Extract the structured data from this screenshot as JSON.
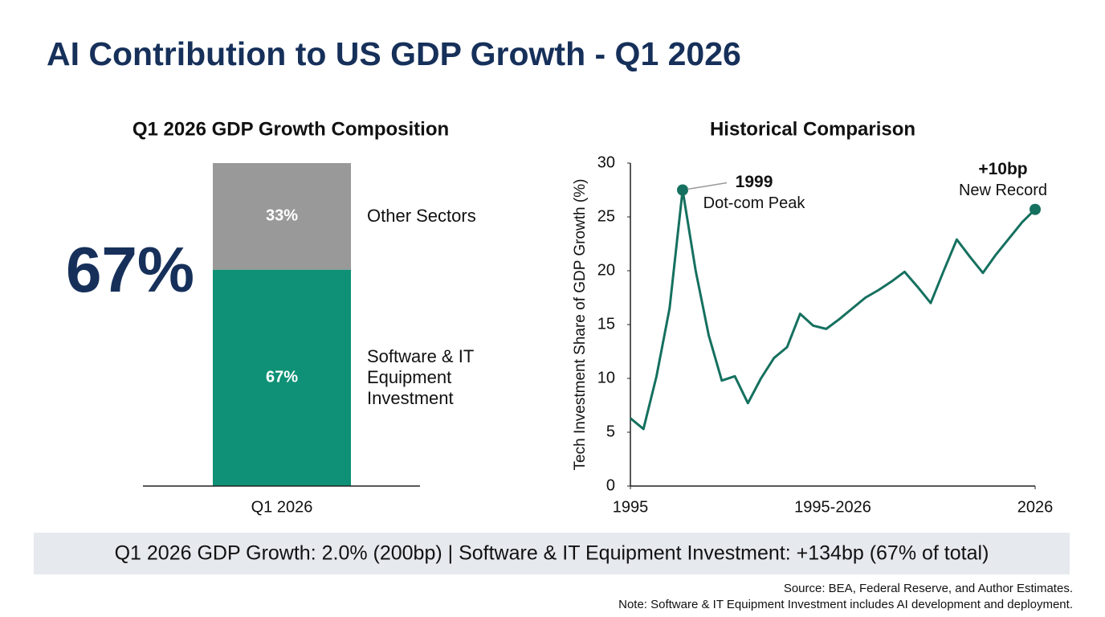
{
  "title": "AI Contribution to US GDP Growth - Q1 2026",
  "headline": "67%",
  "summary": "Q1 2026 GDP Growth: 2.0% (200bp) | Software & IT Equipment Investment: +134bp (67% of total)",
  "source": "Source: BEA, Federal Reserve, and Author Estimates.",
  "note": "Note: Software & IT Equipment Investment includes AI development and deployment.",
  "chart_data": [
    {
      "type": "stacked_bar",
      "title": "Q1 2026 GDP Growth Composition",
      "categories": [
        "Q1 2026"
      ],
      "ylim": [
        0,
        100
      ],
      "series": [
        {
          "name": "Software & IT Equipment Investment",
          "color": "#0e9176",
          "values": [
            67
          ],
          "value_labels": [
            "67%"
          ]
        },
        {
          "name": "Other Sectors",
          "color": "#999999",
          "values": [
            33
          ],
          "value_labels": [
            "33%"
          ]
        }
      ]
    },
    {
      "type": "line",
      "title": "Historical Comparison",
      "ylabel": "Tech Investment Share of GDP Growth (%)",
      "xlabel": "1995-2026",
      "x": [
        1995,
        1996,
        1997,
        1998,
        1999,
        2000,
        2001,
        2002,
        2003,
        2004,
        2005,
        2006,
        2007,
        2008,
        2009,
        2010,
        2011,
        2012,
        2013,
        2014,
        2015,
        2016,
        2017,
        2018,
        2019,
        2020,
        2021,
        2022,
        2023,
        2024,
        2025,
        2026
      ],
      "series": [
        {
          "name": "Tech Investment Share",
          "color": "#15705f",
          "values": [
            6.3,
            5.3,
            10.2,
            16.5,
            27.5,
            20,
            14,
            9.8,
            10.2,
            7.7,
            10,
            11.9,
            12.9,
            16,
            14.9,
            14.6,
            15.5,
            16.5,
            17.5,
            18.2,
            19,
            19.9,
            18.5,
            17,
            20,
            22.9,
            21.3,
            19.8,
            21.5,
            23,
            24.5,
            25.7
          ]
        }
      ],
      "xlim": [
        1995,
        2026
      ],
      "xticks": [
        1995,
        2026
      ],
      "ylim": [
        0,
        30
      ],
      "yticks": [
        0,
        5,
        10,
        15,
        20,
        25,
        30
      ],
      "highlights": [
        {
          "x": 1999,
          "label": "1999",
          "note": "Dot-com Peak"
        },
        {
          "x": 2026,
          "label": "+10bp",
          "note": "New Record"
        }
      ]
    }
  ]
}
